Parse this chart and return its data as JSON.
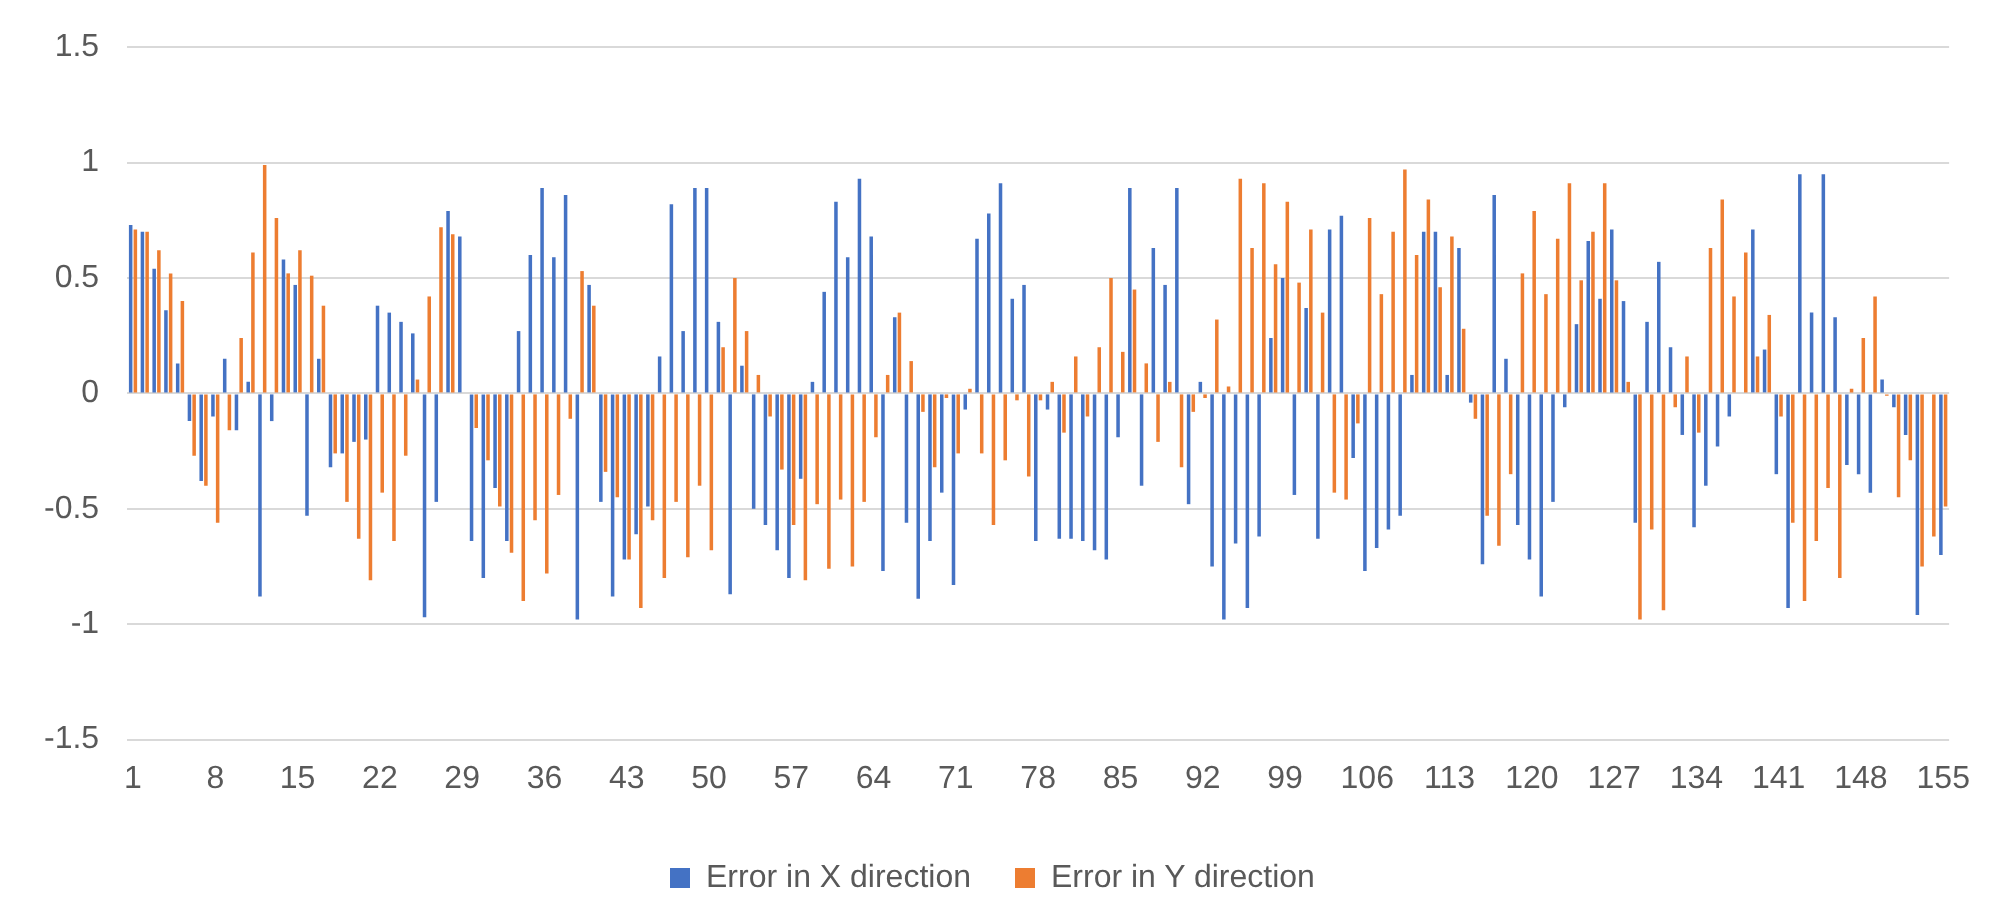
{
  "chart_data": {
    "type": "bar",
    "categories": [
      "1",
      null,
      null,
      null,
      null,
      null,
      null,
      "8",
      null,
      null,
      null,
      null,
      null,
      null,
      "15",
      null,
      null,
      null,
      null,
      null,
      null,
      "22",
      null,
      null,
      null,
      null,
      null,
      null,
      "29",
      null,
      null,
      null,
      null,
      null,
      null,
      "36",
      null,
      null,
      null,
      null,
      null,
      null,
      "43",
      null,
      null,
      null,
      null,
      null,
      null,
      "50",
      null,
      null,
      null,
      null,
      null,
      null,
      "57",
      null,
      null,
      null,
      null,
      null,
      null,
      "64",
      null,
      null,
      null,
      null,
      null,
      null,
      "71",
      null,
      null,
      null,
      null,
      null,
      null,
      "78",
      null,
      null,
      null,
      null,
      null,
      null,
      "85",
      null,
      null,
      null,
      null,
      null,
      null,
      "92",
      null,
      null,
      null,
      null,
      null,
      null,
      "99",
      null,
      null,
      null,
      null,
      null,
      null,
      "106",
      null,
      null,
      null,
      null,
      null,
      null,
      "113",
      null,
      null,
      null,
      null,
      null,
      null,
      "120",
      null,
      null,
      null,
      null,
      null,
      null,
      "127",
      null,
      null,
      null,
      null,
      null,
      null,
      "134",
      null,
      null,
      null,
      null,
      null,
      null,
      "141",
      null,
      null,
      null,
      null,
      null,
      null,
      "148",
      null,
      null,
      null,
      null,
      null,
      null,
      "155"
    ],
    "series": [
      {
        "name": "Error in X direction",
        "color": "#4472c4",
        "values": [
          0.73,
          0.7,
          0.54,
          0.36,
          0.13,
          -0.12,
          -0.38,
          -0.1,
          0.15,
          -0.16,
          0.05,
          -0.88,
          -0.12,
          0.58,
          0.47,
          -0.53,
          0.15,
          -0.32,
          -0.26,
          -0.21,
          -0.2,
          0.38,
          0.35,
          0.31,
          0.26,
          -0.97,
          -0.47,
          0.79,
          0.68,
          -0.64,
          -0.8,
          -0.41,
          -0.64,
          0.27,
          0.6,
          0.89,
          0.59,
          0.86,
          -0.98,
          0.47,
          -0.47,
          -0.88,
          -0.72,
          -0.61,
          -0.49,
          0.16,
          0.82,
          0.27,
          0.89,
          0.89,
          0.31,
          -0.87,
          0.12,
          -0.5,
          -0.57,
          -0.68,
          -0.8,
          -0.37,
          0.05,
          0.44,
          0.83,
          0.59,
          0.93,
          0.68,
          -0.77,
          0.33,
          -0.56,
          -0.89,
          -0.64,
          -0.43,
          -0.83,
          -0.07,
          0.67,
          0.78,
          0.91,
          0.41,
          0.47,
          -0.64,
          -0.07,
          -0.63,
          -0.63,
          -0.64,
          -0.68,
          -0.72,
          -0.19,
          0.89,
          -0.4,
          0.63,
          0.47,
          0.89,
          -0.48,
          0.05,
          -0.75,
          -0.98,
          -0.65,
          -0.93,
          -0.62,
          0.24,
          0.5,
          -0.44,
          0.37,
          -0.63,
          0.71,
          0.77,
          -0.28,
          -0.77,
          -0.67,
          -0.59,
          -0.53,
          0.08,
          0.7,
          0.7,
          0.08,
          0.63,
          -0.04,
          -0.74,
          0.86,
          0.15,
          -0.57,
          -0.72,
          -0.88,
          -0.47,
          -0.06,
          0.3,
          0.66,
          0.41,
          0.71,
          0.4,
          -0.56,
          0.31,
          0.57,
          0.2,
          -0.18,
          -0.58,
          -0.4,
          -0.23,
          -0.1,
          0,
          0.71,
          0.19,
          -0.35,
          -0.93,
          0.95,
          0.35,
          0.95,
          0.33,
          -0.31,
          -0.35,
          -0.43,
          0.06,
          -0.06,
          -0.18,
          -0.96,
          0,
          -0.7
        ]
      },
      {
        "name": "Error in Y direction",
        "color": "#ed7d31",
        "values": [
          0.71,
          0.7,
          0.62,
          0.52,
          0.4,
          -0.27,
          -0.4,
          -0.56,
          -0.16,
          0.24,
          0.61,
          0.99,
          0.76,
          0.52,
          0.62,
          0.51,
          0.38,
          -0.26,
          -0.47,
          -0.63,
          -0.81,
          -0.43,
          -0.64,
          -0.27,
          0.06,
          0.42,
          0.72,
          0.69,
          0,
          -0.15,
          -0.29,
          -0.49,
          -0.69,
          -0.9,
          -0.55,
          -0.78,
          -0.44,
          -0.11,
          0.53,
          0.38,
          -0.34,
          -0.45,
          -0.72,
          -0.93,
          -0.55,
          -0.8,
          -0.47,
          -0.71,
          -0.4,
          -0.68,
          0.2,
          0.5,
          0.27,
          0.08,
          -0.1,
          -0.33,
          -0.57,
          -0.81,
          -0.48,
          -0.76,
          -0.46,
          -0.75,
          -0.47,
          -0.19,
          0.08,
          0.35,
          0.14,
          -0.08,
          -0.32,
          -0.02,
          -0.26,
          0.02,
          -0.26,
          -0.57,
          -0.29,
          -0.03,
          -0.36,
          -0.03,
          0.05,
          -0.17,
          0.16,
          -0.1,
          0.2,
          0.5,
          0.18,
          0.45,
          0.13,
          -0.21,
          0.05,
          -0.32,
          -0.08,
          -0.02,
          0.32,
          0.03,
          0.93,
          0.63,
          0.91,
          0.56,
          0.83,
          0.48,
          0.71,
          0.35,
          -0.43,
          -0.46,
          -0.13,
          0.76,
          0.43,
          0.7,
          0.97,
          0.6,
          0.84,
          0.46,
          0.68,
          0.28,
          -0.11,
          -0.53,
          -0.66,
          -0.35,
          0.52,
          0.79,
          0.43,
          0.67,
          0.91,
          0.49,
          0.7,
          0.91,
          0.49,
          0.05,
          -0.98,
          -0.59,
          -0.94,
          -0.06,
          0.16,
          -0.17,
          0.63,
          0.84,
          0.42,
          0.61,
          0.16,
          0.34,
          -0.1,
          -0.56,
          -0.9,
          -0.64,
          -0.41,
          -0.8,
          0.02,
          0.24,
          0.42,
          -0.01,
          -0.45,
          -0.29,
          -0.75,
          -0.62,
          -0.49
        ]
      }
    ],
    "ylim": [
      -1.5,
      1.5
    ],
    "yticks": [
      -1.5,
      -1,
      -0.5,
      0,
      0.5,
      1,
      1.5
    ],
    "grid": "y",
    "legend": "bottom"
  }
}
